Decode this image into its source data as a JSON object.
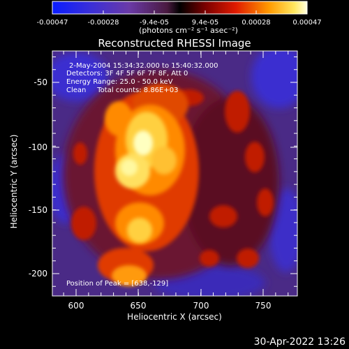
{
  "colorbar": {
    "ticks": [
      "-0.00047",
      "-0.00028",
      "-9.4e-05",
      "9.4e-05",
      "0.00028",
      "0.00047"
    ],
    "unit_label": "(photons cm⁻² s⁻¹ asec⁻²)"
  },
  "image": {
    "title": "Reconstructed RHESSI Image",
    "info_lines": [
      "2-May-2004 15:34:32.000 to 15:40:32.000",
      "Detectors: 3F 4F 5F 6F 7F 8F, Att 0",
      "Energy Range: 25.0 - 50.0 keV",
      "Clean     Total counts: 8.86E+03"
    ],
    "peak_label": "Position of Peak = [638,-129]",
    "xlabel": "Heliocentric X (arcsec)",
    "ylabel": "Heliocentric Y (arcsec)",
    "xticks": [
      "600",
      "650",
      "700",
      "750"
    ],
    "yticks": [
      "-50",
      "-100",
      "-150",
      "-200"
    ]
  },
  "footer": {
    "timestamp": "30-Apr-2022 13:26"
  }
}
